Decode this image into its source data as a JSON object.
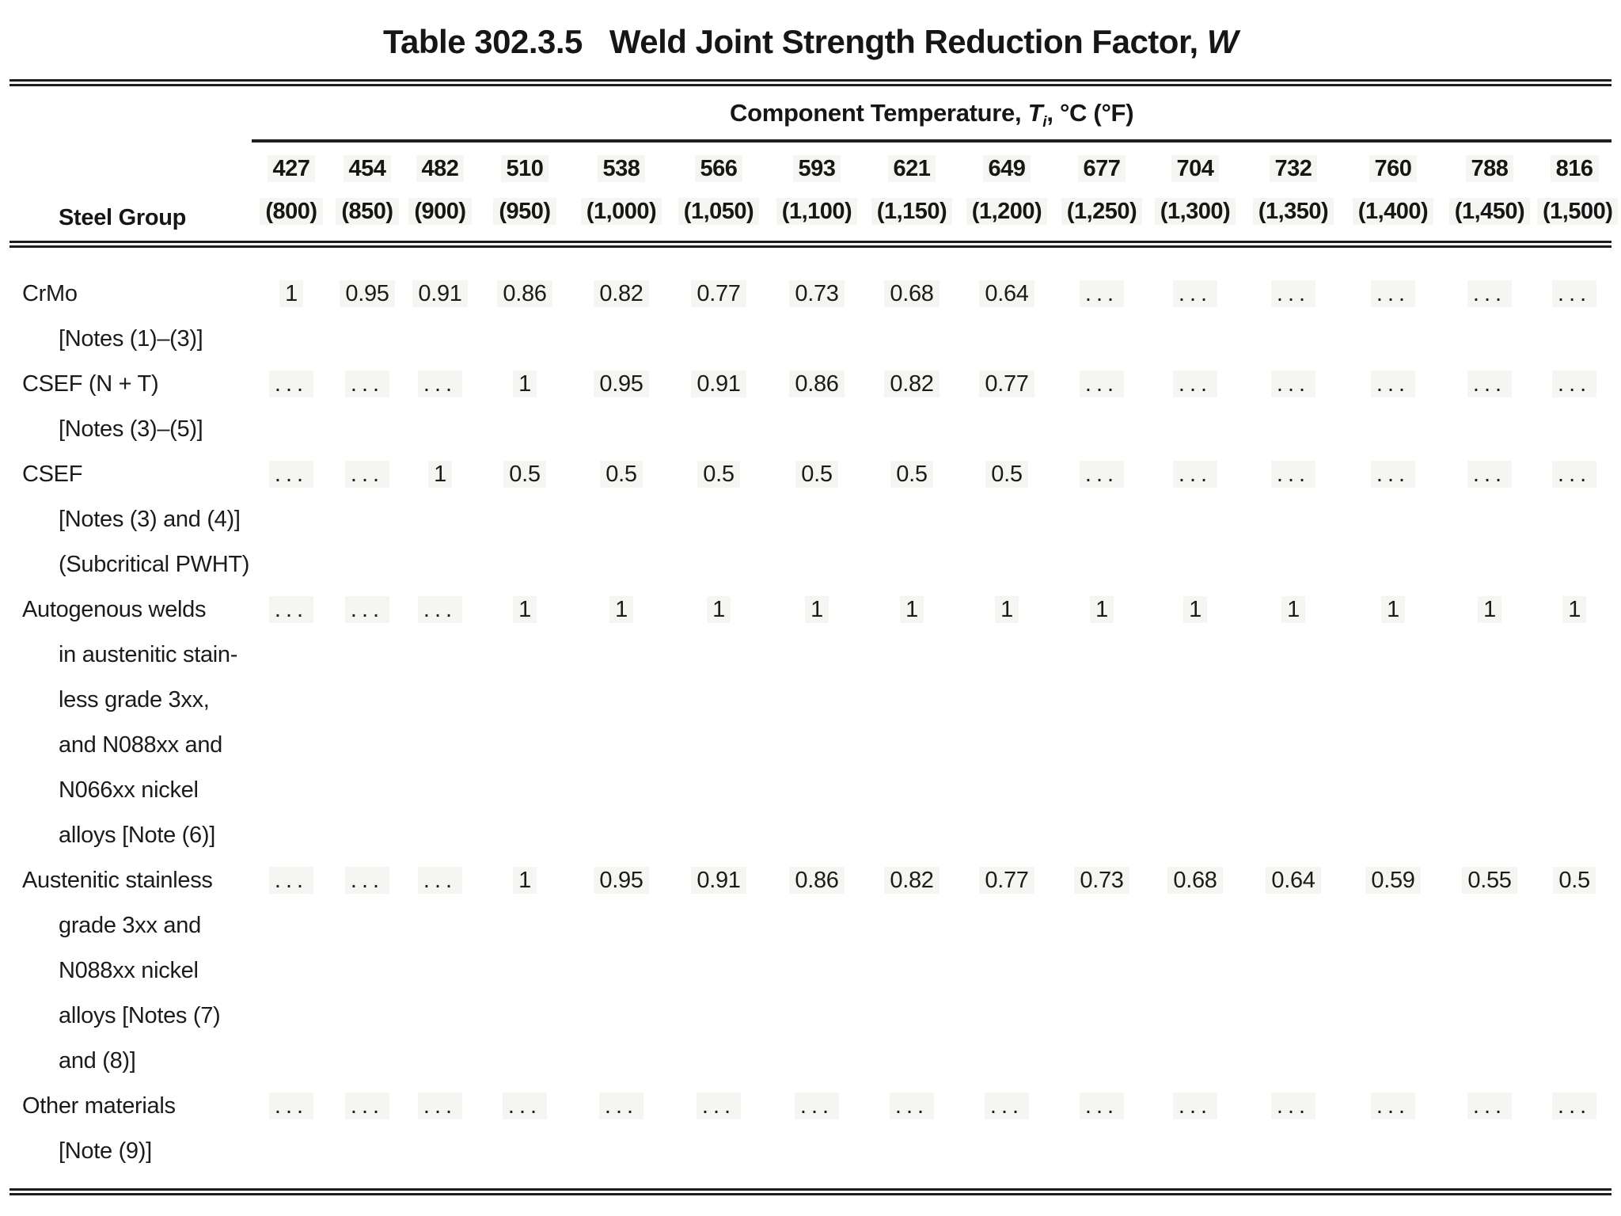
{
  "title": {
    "prefix": "Table 302.3.5",
    "main": "Weld Joint Strength Reduction Factor,",
    "symbol": "W"
  },
  "header": {
    "steel_group_label": "Steel Group",
    "temp_header": {
      "prefix": "Component Temperature, ",
      "symbol": "T",
      "subscript": "i",
      "suffix": ", °C (°F)"
    },
    "columns": [
      {
        "c": "427",
        "f": "(800)"
      },
      {
        "c": "454",
        "f": "(850)"
      },
      {
        "c": "482",
        "f": "(900)"
      },
      {
        "c": "510",
        "f": "(950)"
      },
      {
        "c": "538",
        "f": "(1,000)"
      },
      {
        "c": "566",
        "f": "(1,050)"
      },
      {
        "c": "593",
        "f": "(1,100)"
      },
      {
        "c": "621",
        "f": "(1,150)"
      },
      {
        "c": "649",
        "f": "(1,200)"
      },
      {
        "c": "677",
        "f": "(1,250)"
      },
      {
        "c": "704",
        "f": "(1,300)"
      },
      {
        "c": "732",
        "f": "(1,350)"
      },
      {
        "c": "760",
        "f": "(1,400)"
      },
      {
        "c": "788",
        "f": "(1,450)"
      },
      {
        "c": "816",
        "f": "(1,500)"
      }
    ]
  },
  "rows": [
    {
      "label_lines": [
        "CrMo",
        "[Notes (1)–(3)]"
      ],
      "values": [
        "1",
        "0.95",
        "0.91",
        "0.86",
        "0.82",
        "0.77",
        "0.73",
        "0.68",
        "0.64",
        "...",
        "...",
        "...",
        "...",
        "...",
        "..."
      ]
    },
    {
      "label_lines": [
        "CSEF (N + T)",
        "[Notes (3)–(5)]"
      ],
      "values": [
        "...",
        "...",
        "...",
        "1",
        "0.95",
        "0.91",
        "0.86",
        "0.82",
        "0.77",
        "...",
        "...",
        "...",
        "...",
        "...",
        "..."
      ]
    },
    {
      "label_lines": [
        "CSEF",
        "[Notes (3) and (4)]",
        "(Subcritical PWHT)"
      ],
      "values": [
        "...",
        "...",
        "1",
        "0.5",
        "0.5",
        "0.5",
        "0.5",
        "0.5",
        "0.5",
        "...",
        "...",
        "...",
        "...",
        "...",
        "..."
      ]
    },
    {
      "label_lines": [
        "Autogenous welds",
        "in austenitic stain-",
        "less grade 3xx,",
        "and N088xx and",
        "N066xx nickel",
        "alloys [Note (6)]"
      ],
      "values": [
        "...",
        "...",
        "...",
        "1",
        "1",
        "1",
        "1",
        "1",
        "1",
        "1",
        "1",
        "1",
        "1",
        "1",
        "1"
      ]
    },
    {
      "label_lines": [
        "Austenitic stainless",
        "grade 3xx and",
        "N088xx nickel",
        "alloys [Notes (7)",
        "and (8)]"
      ],
      "values": [
        "...",
        "...",
        "...",
        "1",
        "0.95",
        "0.91",
        "0.86",
        "0.82",
        "0.77",
        "0.73",
        "0.68",
        "0.64",
        "0.59",
        "0.55",
        "0.5"
      ]
    },
    {
      "label_lines": [
        "Other materials",
        "[Note (9)]"
      ],
      "values": [
        "...",
        "...",
        "...",
        "...",
        "...",
        "...",
        "...",
        "...",
        "...",
        "...",
        "...",
        "...",
        "...",
        "...",
        "..."
      ]
    }
  ],
  "colors": {
    "text": "#1b1b1b",
    "rule": "#1d1d1d",
    "cell_tint": "#f5f5f2",
    "background": "#ffffff"
  }
}
